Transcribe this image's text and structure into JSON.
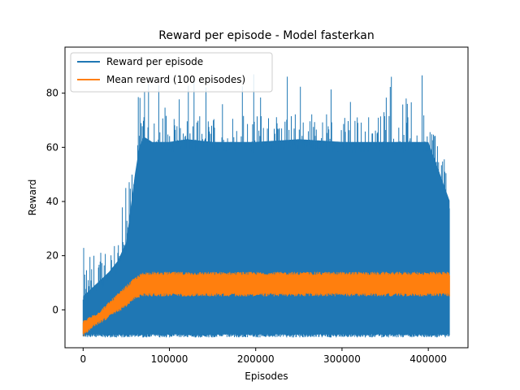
{
  "chart_data": {
    "type": "line",
    "title": "Reward per episode - Model fasterkan",
    "xlabel": "Episodes",
    "ylabel": "Reward",
    "xlim": [
      -21000,
      446000
    ],
    "ylim": [
      -14,
      97
    ],
    "x_ticks": [
      0,
      100000,
      200000,
      300000,
      400000
    ],
    "x_tick_labels": [
      "0",
      "100000",
      "200000",
      "300000",
      "400000"
    ],
    "y_ticks": [
      0,
      20,
      40,
      60,
      80
    ],
    "y_tick_labels": [
      "0",
      "20",
      "40",
      "60",
      "80"
    ],
    "grid": false,
    "legend_position": "top-left",
    "colors": {
      "reward": "#1f77b4",
      "mean": "#ff7f0e"
    },
    "series": [
      {
        "name": "Reward per episode",
        "color": "#1f77b4",
        "x": [
          0,
          10000,
          20000,
          30000,
          40000,
          50000,
          60000,
          65000,
          70000,
          80000,
          100000,
          120000,
          150000,
          200000,
          250000,
          300000,
          350000,
          400000,
          425000
        ],
        "low": [
          -9,
          -9,
          -9,
          -9,
          -9,
          -9,
          -9,
          -9,
          -9,
          -9,
          -9,
          -9,
          -9,
          -9,
          -9,
          -9,
          -9,
          -9,
          -9
        ],
        "high": [
          5,
          8,
          11,
          14,
          18,
          25,
          50,
          60,
          64,
          62,
          62,
          63,
          62,
          62,
          63,
          62,
          62,
          62,
          40
        ]
      },
      {
        "name": "Mean reward (100 episodes)",
        "color": "#ff7f0e",
        "x": [
          0,
          10000,
          20000,
          30000,
          40000,
          50000,
          60000,
          70000,
          80000,
          100000,
          150000,
          200000,
          250000,
          300000,
          350000,
          400000,
          425000
        ],
        "low": [
          -9,
          -6,
          -4,
          -2,
          0,
          2,
          5,
          6,
          6,
          6,
          6,
          6,
          6,
          6,
          6,
          6,
          6
        ],
        "high": [
          -5,
          -3,
          -1,
          2,
          5,
          8,
          11,
          13,
          13,
          13,
          13,
          13,
          13,
          13,
          13,
          13,
          13
        ]
      }
    ]
  }
}
